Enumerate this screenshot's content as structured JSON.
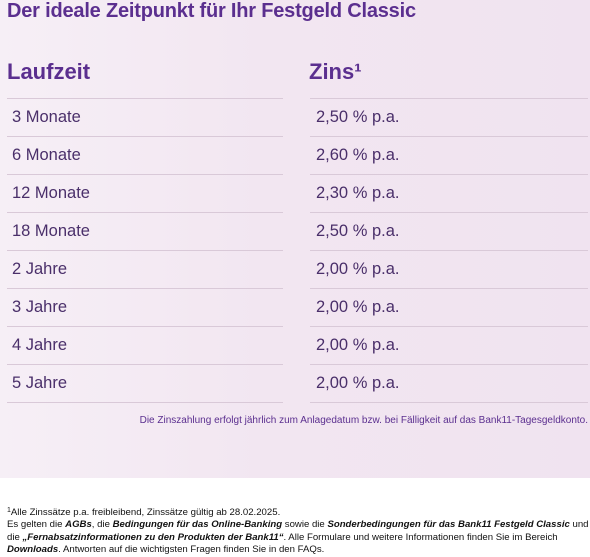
{
  "title": "Der ideale Zeitpunkt für Ihr Festgeld Classic",
  "table": {
    "header_term": "Laufzeit",
    "header_rate": "Zins¹",
    "rows": [
      {
        "term": "3 Monate",
        "rate": "2,50 % p.a."
      },
      {
        "term": "6 Monate",
        "rate": "2,60 % p.a."
      },
      {
        "term": "12 Monate",
        "rate": "2,30 % p.a."
      },
      {
        "term": "18 Monate",
        "rate": "2,50 % p.a."
      },
      {
        "term": "2 Jahre",
        "rate": "2,00 % p.a."
      },
      {
        "term": "3 Jahre",
        "rate": "2,00 % p.a."
      },
      {
        "term": "4 Jahre",
        "rate": "2,00 % p.a."
      },
      {
        "term": "5 Jahre",
        "rate": "2,00 % p.a."
      }
    ]
  },
  "payment_note": "Die Zinszahlung erfolgt jährlich zum Anlagedatum bzw. bei Fälligkeit auf das Bank11-Tagesgeldkonto.",
  "footer": {
    "footnote_mark": "1",
    "footnote_text": "Alle Zinssätze p.a. freibleibend, Zinssätze gültig ab 28.02.2025.",
    "line2_part1": "Es gelten die ",
    "link_agb": "AGBs",
    "line2_part2": ", die ",
    "link_online_banking": "Bedingungen für das Online-Banking",
    "line2_part3": " sowie die ",
    "link_sonderbedingungen": "Sonderbedingungen für das Bank11 Festgeld Classic",
    "line2_part4": " und",
    "line3_part1": "die ",
    "link_fernabsatz": "„Fernabsatzinformationen zu den Produkten der Bank11“",
    "line3_part2": ". Alle Formulare und weitere Informationen finden Sie im Bereich",
    "link_downloads": "Downloads",
    "line4_part2": ". Antworten auf die wichtigsten Fragen finden Sie in den FAQs."
  }
}
